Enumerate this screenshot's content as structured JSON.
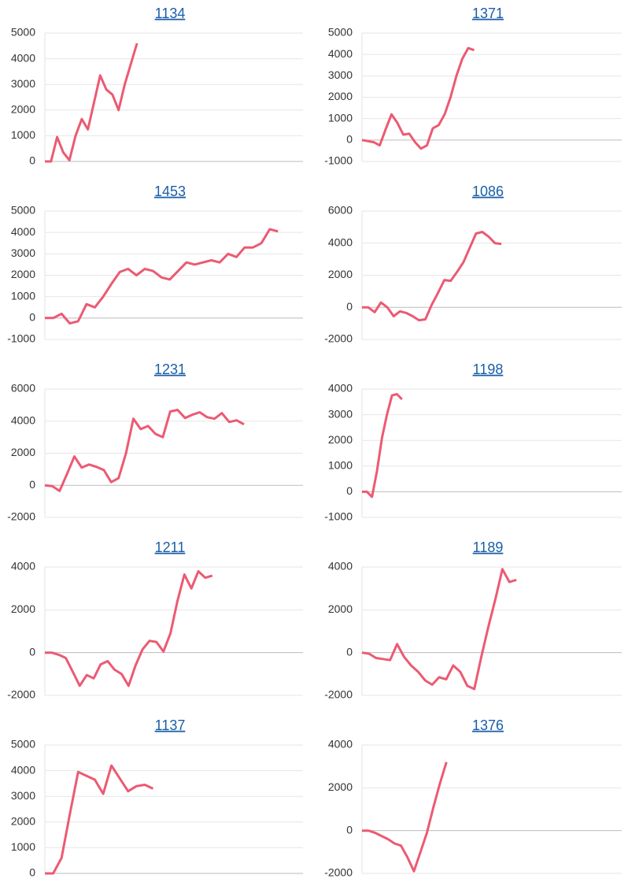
{
  "chart_data": [
    {
      "type": "line",
      "title": "1134",
      "color": "#ec5a72",
      "grid": true,
      "xlim": [
        0,
        42
      ],
      "ylim": [
        0,
        5000
      ],
      "yticks": [
        0,
        1000,
        2000,
        3000,
        4000,
        5000
      ],
      "values": [
        0,
        0,
        950,
        350,
        50,
        1000,
        1650,
        1250,
        2300,
        3350,
        2800,
        2600,
        2000,
        3000,
        3800,
        4600
      ]
    },
    {
      "type": "line",
      "title": "1371",
      "color": "#ec5a72",
      "grid": true,
      "xlim": [
        0,
        44
      ],
      "ylim": [
        -1000,
        5000
      ],
      "yticks": [
        -1000,
        0,
        1000,
        2000,
        3000,
        4000,
        5000
      ],
      "values": [
        0,
        -50,
        -100,
        -250,
        500,
        1200,
        800,
        250,
        300,
        -100,
        -400,
        -250,
        550,
        700,
        1200,
        2000,
        3000,
        3800,
        4300,
        4200
      ]
    },
    {
      "type": "line",
      "title": "1453",
      "color": "#ec5a72",
      "grid": true,
      "xlim": [
        0,
        31
      ],
      "ylim": [
        -1000,
        5000
      ],
      "yticks": [
        -1000,
        0,
        1000,
        2000,
        3000,
        4000,
        5000
      ],
      "values": [
        0,
        0,
        200,
        -250,
        -150,
        650,
        500,
        1000,
        1600,
        2150,
        2300,
        2000,
        2300,
        2200,
        1900,
        1800,
        2200,
        2600,
        2500,
        2600,
        2700,
        2600,
        3000,
        2850,
        3300,
        3300,
        3500,
        4150,
        4050
      ]
    },
    {
      "type": "line",
      "title": "1086",
      "color": "#ec5a72",
      "grid": true,
      "xlim": [
        0,
        41
      ],
      "ylim": [
        -2000,
        6000
      ],
      "yticks": [
        -2000,
        0,
        2000,
        4000,
        6000
      ],
      "values": [
        0,
        0,
        -300,
        300,
        0,
        -550,
        -250,
        -350,
        -550,
        -800,
        -750,
        150,
        900,
        1700,
        1650,
        2200,
        2800,
        3700,
        4600,
        4700,
        4400,
        4000,
        3950
      ]
    },
    {
      "type": "line",
      "title": "1231",
      "color": "#ec5a72",
      "grid": true,
      "xlim": [
        0,
        35
      ],
      "ylim": [
        -2000,
        6000
      ],
      "yticks": [
        -2000,
        0,
        2000,
        4000,
        6000
      ],
      "values": [
        0,
        -50,
        -350,
        700,
        1800,
        1100,
        1300,
        1150,
        950,
        200,
        450,
        2000,
        4150,
        3500,
        3700,
        3200,
        3000,
        4600,
        4700,
        4200,
        4400,
        4550,
        4250,
        4150,
        4500,
        3950,
        4050,
        3800
      ]
    },
    {
      "type": "line",
      "title": "1198",
      "color": "#ec5a72",
      "grid": true,
      "xlim": [
        0,
        52
      ],
      "ylim": [
        -1000,
        4000
      ],
      "yticks": [
        -1000,
        0,
        1000,
        2000,
        3000,
        4000
      ],
      "values": [
        0,
        0,
        -200,
        800,
        2100,
        3000,
        3750,
        3800,
        3600
      ]
    },
    {
      "type": "line",
      "title": "1211",
      "color": "#ec5a72",
      "grid": true,
      "xlim": [
        0,
        37
      ],
      "ylim": [
        -2000,
        4000
      ],
      "yticks": [
        -2000,
        0,
        2000,
        4000
      ],
      "values": [
        0,
        0,
        -100,
        -250,
        -900,
        -1550,
        -1050,
        -1200,
        -550,
        -400,
        -800,
        -1000,
        -1550,
        -600,
        150,
        550,
        500,
        50,
        900,
        2400,
        3650,
        3000,
        3800,
        3500,
        3600
      ]
    },
    {
      "type": "line",
      "title": "1189",
      "color": "#ec5a72",
      "grid": true,
      "xlim": [
        0,
        37
      ],
      "ylim": [
        -2000,
        4000
      ],
      "yticks": [
        -2000,
        0,
        2000,
        4000
      ],
      "values": [
        0,
        -50,
        -250,
        -300,
        -350,
        400,
        -200,
        -600,
        -900,
        -1300,
        -1500,
        -1150,
        -1250,
        -600,
        -900,
        -1550,
        -1700,
        -200,
        1200,
        2500,
        3900,
        3300,
        3400
      ]
    },
    {
      "type": "line",
      "title": "1137",
      "color": "#ec5a72",
      "grid": true,
      "xlim": [
        0,
        31
      ],
      "ylim": [
        0,
        5000
      ],
      "yticks": [
        0,
        1000,
        2000,
        3000,
        4000,
        5000
      ],
      "values": [
        0,
        0,
        600,
        2300,
        3950,
        3800,
        3650,
        3100,
        4200,
        3700,
        3200,
        3400,
        3450,
        3300
      ]
    },
    {
      "type": "line",
      "title": "1376",
      "color": "#ec5a72",
      "grid": true,
      "xlim": [
        0,
        40
      ],
      "ylim": [
        -2000,
        4000
      ],
      "yticks": [
        -2000,
        0,
        2000,
        4000
      ],
      "values": [
        0,
        0,
        -100,
        -250,
        -400,
        -600,
        -700,
        -1250,
        -1900,
        -1000,
        -100,
        1100,
        2200,
        3200
      ]
    }
  ]
}
